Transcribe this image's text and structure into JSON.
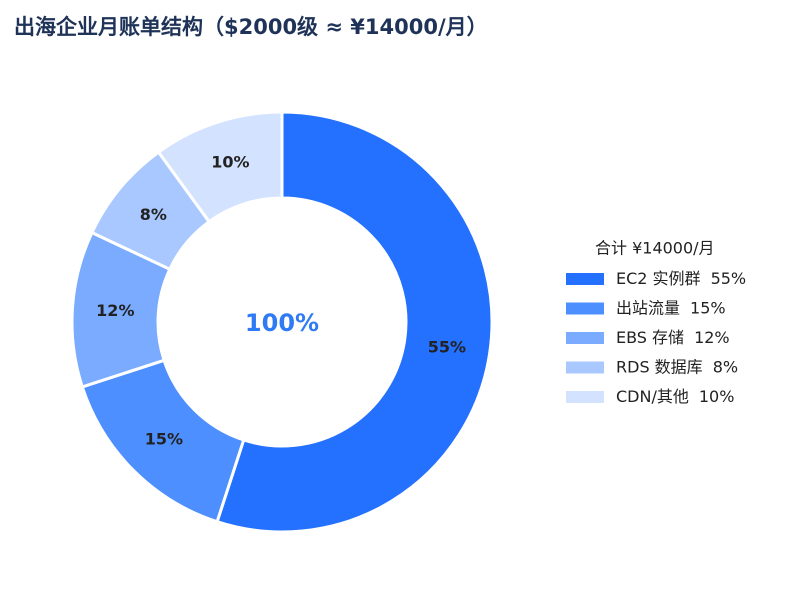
{
  "chart_data": {
    "type": "pie",
    "title": "出海企业月账单结构（$2000级 ≈ ¥14000/月）",
    "center_label": "100%",
    "legend_title": "合计 ¥14000/月",
    "categories": [
      "EC2 实例群",
      "出站流量",
      "EBS 存储",
      "RDS 数据库",
      "CDN/其他"
    ],
    "values": [
      55,
      15,
      12,
      8,
      10
    ],
    "value_labels": [
      "55%",
      "15%",
      "12%",
      "8%",
      "10%"
    ],
    "colors": [
      "#2470ff",
      "#4d8fff",
      "#7aabff",
      "#a8c8ff",
      "#d3e3ff"
    ],
    "legend": "right"
  }
}
